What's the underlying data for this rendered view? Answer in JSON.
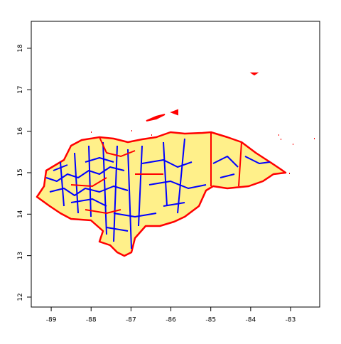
{
  "chart_data": {
    "type": "map",
    "xlim": [
      -89.5,
      -82.27
    ],
    "ylim": [
      11.76,
      18.65
    ],
    "xticks": [
      -89,
      -88,
      -87,
      -86,
      -85,
      -84,
      -83
    ],
    "yticks": [
      12,
      13,
      14,
      15,
      16,
      17,
      18
    ]
  }
}
